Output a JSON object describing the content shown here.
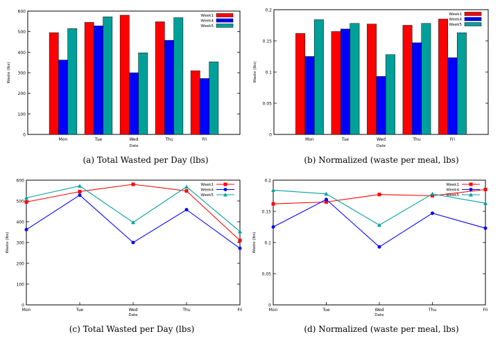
{
  "colors": {
    "week1": "#ff0000",
    "week4": "#0000ff",
    "week5": "#00a09a"
  },
  "chart_data": [
    {
      "type": "bar",
      "panel": "a",
      "caption": "(a)  Total Wasted per Day (lbs)",
      "xlabel": "Date",
      "ylabel": "Waste (lbs)",
      "categories": [
        "Mon",
        "Tue",
        "Wed",
        "Thu",
        "Fri"
      ],
      "ylim": [
        0,
        600
      ],
      "yticks": [
        0,
        100,
        200,
        300,
        400,
        500,
        600
      ],
      "ytick_labels": [
        "0",
        "100",
        "200",
        "300",
        "400",
        "500",
        "600"
      ],
      "legend_position": "top-right",
      "series": [
        {
          "name": "Week1",
          "values": [
            495,
            545,
            580,
            548,
            310
          ]
        },
        {
          "name": "Week4",
          "values": [
            362,
            528,
            300,
            458,
            272
          ]
        },
        {
          "name": "Week5",
          "values": [
            515,
            572,
            397,
            568,
            353
          ]
        }
      ]
    },
    {
      "type": "bar",
      "panel": "b",
      "caption": "(b)  Normalized (waste per meal, lbs)",
      "xlabel": "Date",
      "ylabel": "Waste (lbs)",
      "categories": [
        "Mon",
        "Tue",
        "Wed",
        "Thu",
        "Fri"
      ],
      "ylim": [
        0,
        0.2
      ],
      "yticks": [
        0,
        0.05,
        0.1,
        0.15,
        0.2
      ],
      "ytick_labels": [
        "0",
        "0.05",
        "0.1",
        "0.15",
        "0.2"
      ],
      "legend_position": "top-right",
      "series": [
        {
          "name": "Week1",
          "values": [
            0.162,
            0.165,
            0.177,
            0.175,
            0.185
          ]
        },
        {
          "name": "Week4",
          "values": [
            0.125,
            0.169,
            0.093,
            0.147,
            0.123
          ]
        },
        {
          "name": "Week5",
          "values": [
            0.184,
            0.178,
            0.128,
            0.178,
            0.163
          ]
        }
      ]
    },
    {
      "type": "line",
      "panel": "c",
      "caption": "(c)  Total Wasted per Day (lbs)",
      "xlabel": "Date",
      "ylabel": "Waste (lbs)",
      "categories": [
        "Mon",
        "Tue",
        "Wed",
        "Thu",
        "Fri"
      ],
      "ylim": [
        0,
        600
      ],
      "yticks": [
        0,
        100,
        200,
        300,
        400,
        500,
        600
      ],
      "ytick_labels": [
        "0",
        "100",
        "200",
        "300",
        "400",
        "500",
        "600"
      ],
      "legend_position": "top-right",
      "series": [
        {
          "name": "Week1",
          "marker": "square",
          "values": [
            495,
            545,
            580,
            548,
            310
          ]
        },
        {
          "name": "Week4",
          "marker": "circle",
          "values": [
            362,
            528,
            300,
            458,
            272
          ]
        },
        {
          "name": "Week5",
          "marker": "triangle",
          "values": [
            515,
            572,
            397,
            568,
            353
          ]
        }
      ]
    },
    {
      "type": "line",
      "panel": "d",
      "caption": "(d)  Normalized (waste per meal, lbs)",
      "xlabel": "Date",
      "ylabel": "Waste (lbs)",
      "categories": [
        "Mon",
        "Tue",
        "Wed",
        "Thu",
        "Fri"
      ],
      "ylim": [
        0,
        0.2
      ],
      "yticks": [
        0,
        0.05,
        0.1,
        0.15,
        0.2
      ],
      "ytick_labels": [
        "0",
        "0.05",
        "0.1",
        "0.15",
        "0.2"
      ],
      "legend_position": "top-right",
      "series": [
        {
          "name": "Week1",
          "marker": "square",
          "values": [
            0.162,
            0.165,
            0.177,
            0.175,
            0.185
          ]
        },
        {
          "name": "Week4",
          "marker": "circle",
          "values": [
            0.125,
            0.169,
            0.093,
            0.147,
            0.123
          ]
        },
        {
          "name": "Week5",
          "marker": "triangle",
          "values": [
            0.184,
            0.178,
            0.128,
            0.178,
            0.163
          ]
        }
      ]
    }
  ]
}
